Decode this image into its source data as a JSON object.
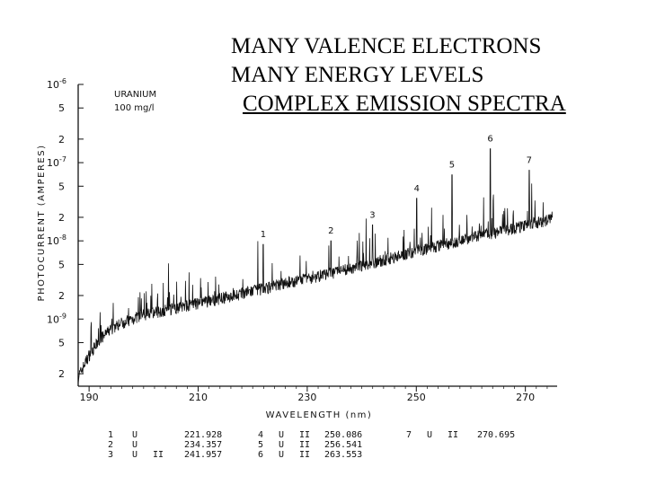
{
  "heading": {
    "line1": "MANY  VALENCE  ELECTRONS",
    "line2": "MANY  ENERGY  LEVELS",
    "line3": "COMPLEX  EMISSION  SPECTRA"
  },
  "chart_data": {
    "type": "line",
    "title": "",
    "xlabel": "WAVELENGTH (nm)",
    "ylabel": "PHOTOCURRENT (AMPERES)",
    "inset": [
      "URANIUM",
      "100 mg/l"
    ],
    "xlim": [
      188,
      275
    ],
    "ylim": [
      1.5e-10,
      1e-06
    ],
    "yscale": "log",
    "grid": false,
    "x_ticks": [
      "190",
      "210",
      "230",
      "250",
      "270"
    ],
    "y_ticks": [
      {
        "label": "10",
        "exp": "-6"
      },
      {
        "label": "5",
        "exp": ""
      },
      {
        "label": "2",
        "exp": ""
      },
      {
        "label": "10",
        "exp": "-7"
      },
      {
        "label": "5",
        "exp": ""
      },
      {
        "label": "2",
        "exp": ""
      },
      {
        "label": "10",
        "exp": "-8"
      },
      {
        "label": "5",
        "exp": ""
      },
      {
        "label": "2",
        "exp": ""
      },
      {
        "label": "10",
        "exp": "-9"
      },
      {
        "label": "5",
        "exp": ""
      },
      {
        "label": "2",
        "exp": ""
      }
    ],
    "y_tick_values": [
      1e-06,
      5e-07,
      2e-07,
      1e-07,
      5e-08,
      2e-08,
      1e-08,
      5e-09,
      2e-09,
      1e-09,
      5e-10,
      2e-10
    ],
    "baseline": {
      "x": [
        188,
        190,
        192,
        194,
        196,
        200,
        205,
        210,
        215,
        220,
        225,
        230,
        235,
        240,
        245,
        250,
        255,
        260,
        265,
        270,
        275
      ],
      "y": [
        1.8e-10,
        3.5e-10,
        5.5e-10,
        7.5e-10,
        9e-10,
        1.15e-09,
        1.35e-09,
        1.6e-09,
        1.9e-09,
        2.3e-09,
        2.8e-09,
        3.3e-09,
        4e-09,
        4.8e-09,
        6e-09,
        7.5e-09,
        9e-09,
        1.1e-08,
        1.3e-08,
        1.6e-08,
        1.9e-08
      ]
    },
    "peaks": [
      {
        "label": "1",
        "x": 221.928,
        "y": 9e-09
      },
      {
        "label": "2",
        "x": 234.357,
        "y": 1e-08
      },
      {
        "label": "3",
        "x": 241.957,
        "y": 1.6e-08
      },
      {
        "label": "4",
        "x": 250.086,
        "y": 3.5e-08
      },
      {
        "label": "5",
        "x": 256.541,
        "y": 7e-08
      },
      {
        "label": "6",
        "x": 263.553,
        "y": 1.5e-07
      },
      {
        "label": "7",
        "x": 270.695,
        "y": 8e-08
      }
    ],
    "line_table": [
      {
        "no": "1",
        "el": "U",
        "ion": "",
        "wl": "221.928"
      },
      {
        "no": "2",
        "el": "U",
        "ion": "",
        "wl": "234.357"
      },
      {
        "no": "3",
        "el": "U",
        "ion": "II",
        "wl": "241.957"
      },
      {
        "no": "4",
        "el": "U",
        "ion": "II",
        "wl": "250.086"
      },
      {
        "no": "5",
        "el": "U",
        "ion": "II",
        "wl": "256.541"
      },
      {
        "no": "6",
        "el": "U",
        "ion": "II",
        "wl": "263.553"
      },
      {
        "no": "7",
        "el": "U",
        "ion": "II",
        "wl": "270.695"
      }
    ]
  }
}
